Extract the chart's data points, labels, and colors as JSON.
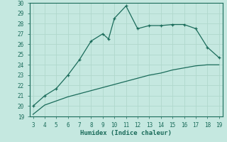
{
  "title": "",
  "xlabel": "Humidex (Indice chaleur)",
  "bg_color": "#c5e8e0",
  "grid_color": "#b0d8cc",
  "line_color": "#1a6b5a",
  "x_upper": [
    3,
    4,
    5,
    6,
    7,
    8,
    9,
    9.5,
    10,
    11,
    12,
    13,
    14,
    15,
    16,
    17,
    18,
    19
  ],
  "y_upper": [
    20.0,
    21.0,
    21.7,
    23.0,
    24.5,
    26.3,
    27.0,
    26.5,
    28.5,
    29.7,
    27.5,
    27.8,
    27.8,
    27.9,
    27.9,
    27.5,
    25.7,
    24.7
  ],
  "x_lower": [
    3,
    4,
    5,
    6,
    7,
    8,
    9,
    10,
    11,
    12,
    13,
    14,
    15,
    16,
    17,
    18,
    19
  ],
  "y_lower": [
    19.2,
    20.1,
    20.5,
    20.9,
    21.2,
    21.5,
    21.8,
    22.1,
    22.4,
    22.7,
    23.0,
    23.2,
    23.5,
    23.7,
    23.9,
    24.0,
    24.0
  ],
  "xlim": [
    2.7,
    19.3
  ],
  "ylim": [
    19,
    30
  ],
  "xticks": [
    3,
    4,
    5,
    6,
    7,
    8,
    9,
    10,
    11,
    12,
    13,
    14,
    15,
    16,
    17,
    18,
    19
  ],
  "yticks": [
    19,
    20,
    21,
    22,
    23,
    24,
    25,
    26,
    27,
    28,
    29,
    30
  ]
}
